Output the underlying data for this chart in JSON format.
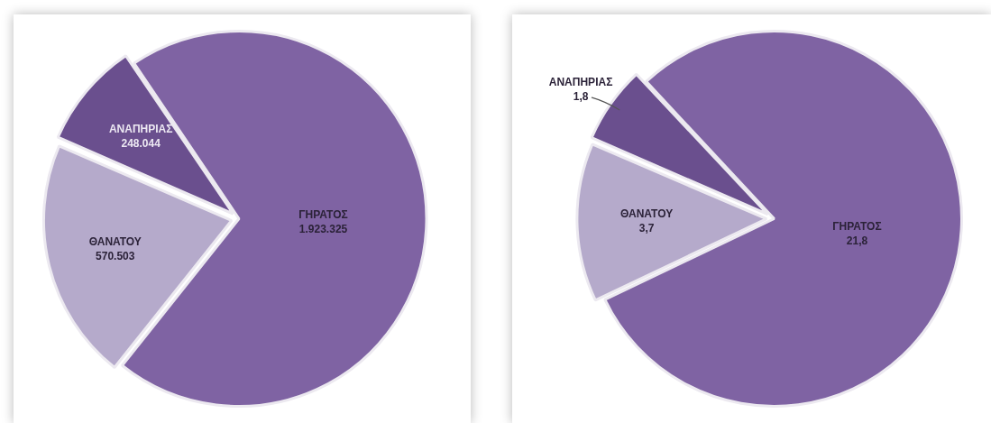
{
  "chart_data": [
    {
      "type": "pie",
      "categories": [
        "ΓΗΡΑΤΟΣ",
        "ΘΑΝΑΤΟΥ",
        "ΑΝΑΠΗΡΙΑΣ"
      ],
      "values": [
        1923325,
        570503,
        248044
      ],
      "value_labels": [
        "1.923.325",
        "570.503",
        "248.044"
      ],
      "colors": [
        "#7f63a3",
        "#b5aacb",
        "#6a4f8e"
      ]
    },
    {
      "type": "pie",
      "categories": [
        "ΓΗΡΑΤΟΣ",
        "ΘΑΝΑΤΟΥ",
        "ΑΝΑΠΗΡΙΑΣ"
      ],
      "values": [
        21.8,
        3.7,
        1.8
      ],
      "value_labels": [
        "21,8",
        "3,7",
        "1,8"
      ],
      "colors": [
        "#7f63a3",
        "#b5aacb",
        "#6a4f8e"
      ]
    }
  ]
}
